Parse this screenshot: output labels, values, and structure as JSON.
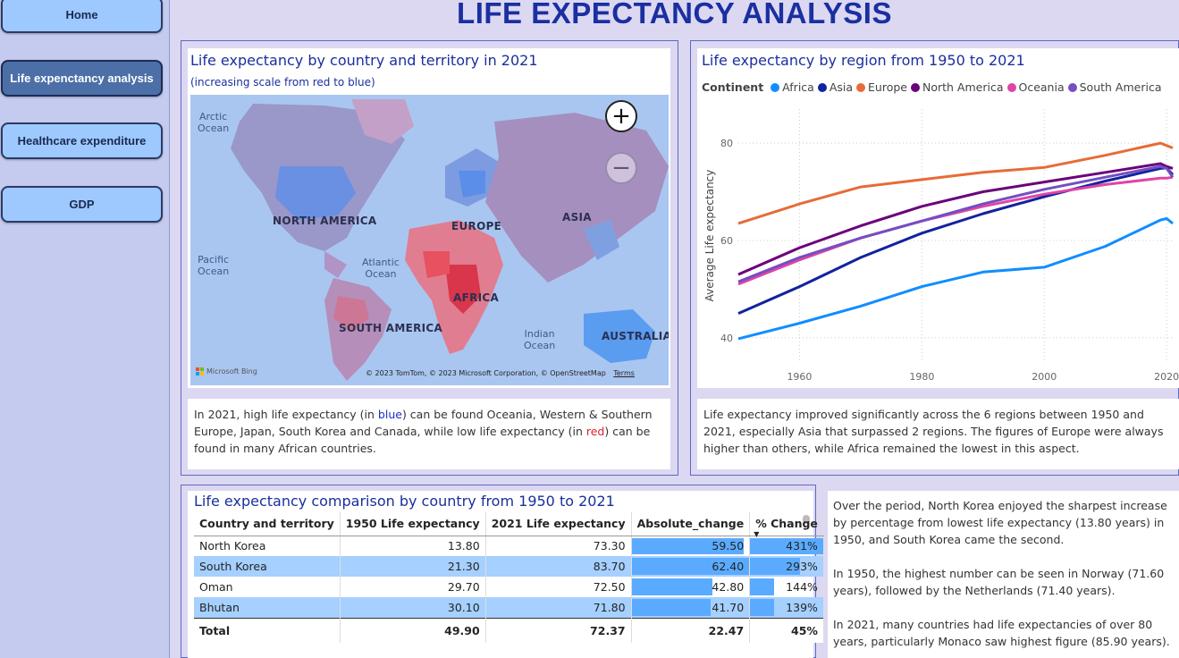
{
  "nav": {
    "home": "Home",
    "life": "Life expenctancy analysis",
    "health": "Healthcare expenditure",
    "gdp": "GDP"
  },
  "page_title": "LIFE EXPECTANCY ANALYSIS",
  "map_card": {
    "title": "Life expectancy by country and territory in 2021",
    "subtitle": "(increasing scale from red to blue)",
    "labels": {
      "arctic": "Arctic\nOcean",
      "pacific": "Pacific\nOcean",
      "atlantic": "Atlantic\nOcean",
      "indian": "Indian\nOcean",
      "north_america": "NORTH AMERICA",
      "europe": "EUROPE",
      "asia": "ASIA",
      "africa": "AFRICA",
      "south_america": "SOUTH AMERICA",
      "australia": "AUSTRALIA"
    },
    "zoom_in": "+",
    "zoom_out": "−",
    "bing": "Microsoft Bing",
    "attribution": "© 2023 TomTom, © 2023 Microsoft Corporation, © OpenStreetMap",
    "terms": "Terms"
  },
  "map_desc": {
    "p1": "In 2021, high life expectancy (in ",
    "blue": "blue",
    "p2": ") can be found Oceania, Western & Southern Europe, Japan, South Korea and Canada, while low life expectancy (in ",
    "red": "red",
    "p3": ") can be found in many African countries."
  },
  "line_card": {
    "title": "Life expectancy by region from 1950 to 2021",
    "legend_title": "Continent"
  },
  "line_desc": "Life expectancy improved significantly across the 6 regions between 1950 and 2021, especially Asia that surpassed 2 regions. The figures of Europe were always higher than others, while Africa remained the lowest in this aspect.",
  "chart_data": {
    "type": "line",
    "title": "Life expectancy by region from 1950 to 2021",
    "xlabel": "",
    "ylabel": "Average Life expectancy",
    "xlim": [
      1950,
      2021
    ],
    "ylim": [
      35,
      87
    ],
    "xticks": [
      1960,
      1980,
      2000,
      2020
    ],
    "yticks": [
      40,
      60,
      80
    ],
    "grid": true,
    "legend_position": "top",
    "x": [
      1950,
      1960,
      1970,
      1980,
      1990,
      2000,
      2010,
      2019,
      2020,
      2021
    ],
    "series": [
      {
        "name": "Africa",
        "color": "#118dff",
        "values": [
          39.8,
          43.0,
          46.5,
          50.5,
          53.5,
          54.5,
          58.8,
          64.2,
          64.5,
          63.5
        ]
      },
      {
        "name": "Asia",
        "color": "#12239e",
        "values": [
          45.0,
          50.5,
          56.5,
          61.5,
          65.5,
          69.0,
          72.2,
          74.8,
          74.9,
          73.5
        ]
      },
      {
        "name": "Europe",
        "color": "#e66c37",
        "values": [
          63.5,
          67.5,
          71.0,
          72.5,
          74.0,
          75.0,
          77.5,
          80.0,
          79.5,
          79.0
        ]
      },
      {
        "name": "North America",
        "color": "#6b007b",
        "values": [
          53.0,
          58.5,
          63.0,
          67.0,
          70.0,
          72.0,
          74.0,
          75.8,
          75.2,
          74.8
        ]
      },
      {
        "name": "Oceania",
        "color": "#e044a7",
        "values": [
          51.0,
          56.0,
          60.5,
          64.0,
          67.0,
          69.5,
          71.5,
          72.8,
          72.8,
          73.0
        ]
      },
      {
        "name": "South America",
        "color": "#744ec2",
        "values": [
          51.5,
          56.5,
          60.5,
          64.0,
          67.5,
          70.5,
          73.0,
          75.2,
          74.8,
          73.0
        ]
      }
    ]
  },
  "table_card": {
    "title": "Life expectancy comparison by country from 1950 to 2021",
    "headers": [
      "Country and territory",
      "1950 Life expectancy",
      "2021 Life expectancy",
      "Absolute_change",
      "% Change"
    ],
    "sort_indicator": "▼",
    "rows": [
      {
        "country": "North Korea",
        "y1950": "13.80",
        "y2021": "73.30",
        "abs": "59.50",
        "abs_value": 59.5,
        "pct": "431%",
        "pct_value": 431
      },
      {
        "country": "South Korea",
        "y1950": "21.30",
        "y2021": "83.70",
        "abs": "62.40",
        "abs_value": 62.4,
        "pct": "293%",
        "pct_value": 293
      },
      {
        "country": "Oman",
        "y1950": "29.70",
        "y2021": "72.50",
        "abs": "42.80",
        "abs_value": 42.8,
        "pct": "144%",
        "pct_value": 144
      },
      {
        "country": "Bhutan",
        "y1950": "30.10",
        "y2021": "71.80",
        "abs": "41.70",
        "abs_value": 41.7,
        "pct": "139%",
        "pct_value": 139
      }
    ],
    "total": {
      "label": "Total",
      "y1950": "49.90",
      "y2021": "72.37",
      "abs": "22.47",
      "pct": "45%"
    }
  },
  "table_desc": {
    "p1": "Over the period, North Korea enjoyed the sharpest increase by percentage from lowest life expectancy (13.80 years) in 1950, and South Korea came the second.",
    "p2": "In 1950, the highest number can be seen in Norway (71.60 years), followed by the Netherlands (71.40 years).",
    "p3": "In 2021, many countries had life expectancies of over 80 years, particularly Monaco saw highest figure (85.90 years)."
  }
}
